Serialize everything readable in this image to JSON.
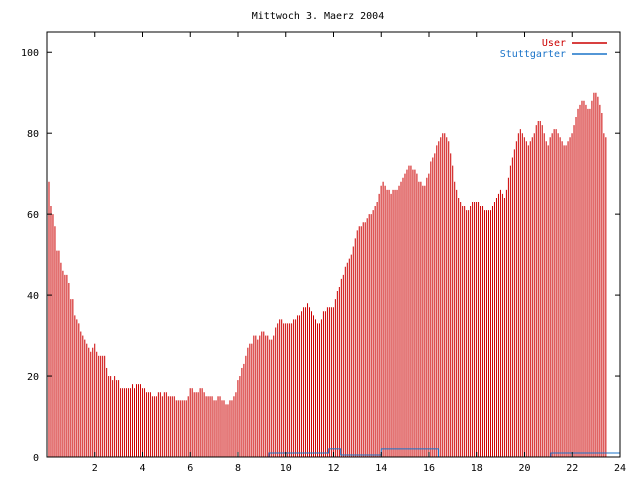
{
  "chart_data": {
    "type": "bar",
    "title": "Mittwoch 3. Maerz 2004",
    "xlabel": "",
    "ylabel": "",
    "xlim": [
      0,
      24
    ],
    "ylim": [
      0,
      105
    ],
    "xticks": [
      2,
      4,
      6,
      8,
      10,
      12,
      14,
      16,
      18,
      20,
      22,
      24
    ],
    "yticks": [
      0,
      20,
      40,
      60,
      80,
      100
    ],
    "grid": false,
    "legend_position": "top-right",
    "series": [
      {
        "name": "User",
        "color": "#cc0000",
        "type": "impulses",
        "x_step_hours": 0.0833,
        "values": [
          71,
          68,
          62,
          60,
          57,
          51,
          51,
          48,
          46,
          45,
          45,
          43,
          39,
          39,
          35,
          34,
          33,
          31,
          30,
          29,
          28,
          27,
          26,
          27,
          28,
          26,
          25,
          25,
          25,
          25,
          22,
          20,
          20,
          19,
          20,
          19,
          19,
          17,
          17,
          17,
          17,
          17,
          17,
          18,
          17,
          18,
          18,
          18,
          17,
          17,
          16,
          16,
          16,
          15,
          15,
          15,
          16,
          16,
          15,
          16,
          16,
          15,
          15,
          15,
          15,
          14,
          14,
          14,
          14,
          14,
          14,
          15,
          17,
          17,
          16,
          16,
          16,
          17,
          17,
          16,
          15,
          15,
          15,
          15,
          14,
          14,
          15,
          15,
          14,
          14,
          13,
          13,
          14,
          14,
          15,
          16,
          19,
          20,
          22,
          23,
          25,
          27,
          28,
          28,
          30,
          30,
          29,
          30,
          31,
          31,
          30,
          30,
          29,
          29,
          30,
          32,
          33,
          34,
          34,
          33,
          33,
          33,
          33,
          33,
          34,
          34,
          35,
          35,
          36,
          37,
          37,
          38,
          37,
          36,
          35,
          34,
          33,
          33,
          34,
          36,
          36,
          37,
          37,
          37,
          37,
          39,
          41,
          42,
          44,
          45,
          47,
          48,
          49,
          50,
          52,
          54,
          56,
          57,
          57,
          58,
          58,
          59,
          60,
          60,
          61,
          62,
          63,
          65,
          67,
          68,
          67,
          66,
          66,
          65,
          66,
          66,
          66,
          67,
          68,
          69,
          70,
          71,
          72,
          72,
          71,
          71,
          70,
          68,
          68,
          67,
          67,
          69,
          70,
          73,
          74,
          75,
          77,
          78,
          79,
          80,
          80,
          79,
          78,
          75,
          72,
          68,
          66,
          64,
          63,
          62,
          62,
          61,
          61,
          62,
          63,
          63,
          63,
          63,
          62,
          62,
          61,
          61,
          61,
          61,
          62,
          63,
          64,
          65,
          66,
          65,
          64,
          66,
          69,
          72,
          74,
          76,
          78,
          80,
          81,
          80,
          79,
          78,
          77,
          78,
          79,
          80,
          82,
          83,
          83,
          82,
          80,
          78,
          77,
          79,
          80,
          81,
          81,
          80,
          79,
          78,
          77,
          77,
          78,
          79,
          80,
          82,
          84,
          86,
          87,
          88,
          88,
          87,
          86,
          86,
          88,
          90,
          90,
          89,
          87,
          85,
          80,
          79
        ]
      },
      {
        "name": "Stuttgarter",
        "color": "#1a73c8",
        "type": "line",
        "points": [
          [
            0,
            0
          ],
          [
            9.3,
            0
          ],
          [
            9.3,
            1
          ],
          [
            11.8,
            1
          ],
          [
            11.8,
            2
          ],
          [
            12.3,
            2
          ],
          [
            12.3,
            0.5
          ],
          [
            14,
            0.5
          ],
          [
            14,
            2
          ],
          [
            16.4,
            2
          ],
          [
            16.4,
            0
          ],
          [
            21.1,
            0
          ],
          [
            21.1,
            1
          ],
          [
            24,
            1
          ]
        ]
      }
    ]
  }
}
